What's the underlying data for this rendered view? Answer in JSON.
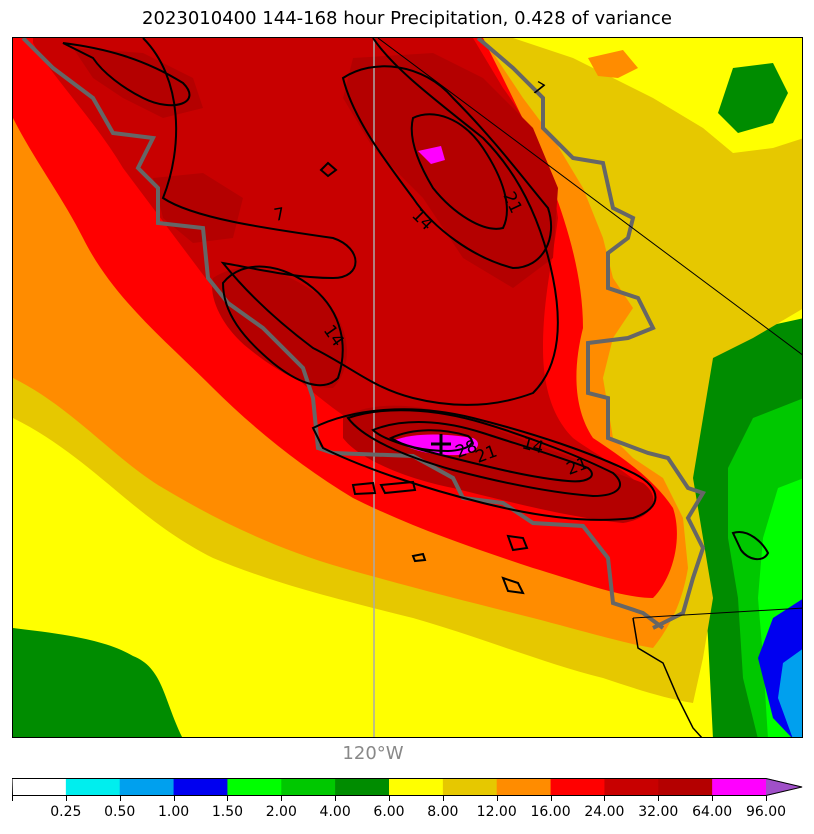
{
  "title": "2023010400 144-168 hour Precipitation, 0.428 of variance",
  "map": {
    "longitude_label": "120°W",
    "contour_labels": [
      "7",
      "7",
      "14",
      "21",
      "14",
      "28",
      "21",
      "14",
      "21"
    ],
    "max_marker": "plus-sign"
  },
  "colorbar": {
    "levels": [
      "0.25",
      "0.50",
      "1.00",
      "1.50",
      "2.00",
      "4.00",
      "6.00",
      "8.00",
      "12.00",
      "16.00",
      "24.00",
      "32.00",
      "64.00",
      "96.00"
    ],
    "colors": [
      "#ffffff",
      "#00eeee",
      "#00a0ee",
      "#0000f0",
      "#00ff00",
      "#00c800",
      "#008c00",
      "#ffff00",
      "#e6c800",
      "#ff8c00",
      "#ff0000",
      "#c80000",
      "#b40000",
      "#ff00ff",
      "#a050c8"
    ],
    "extend": "max"
  }
}
